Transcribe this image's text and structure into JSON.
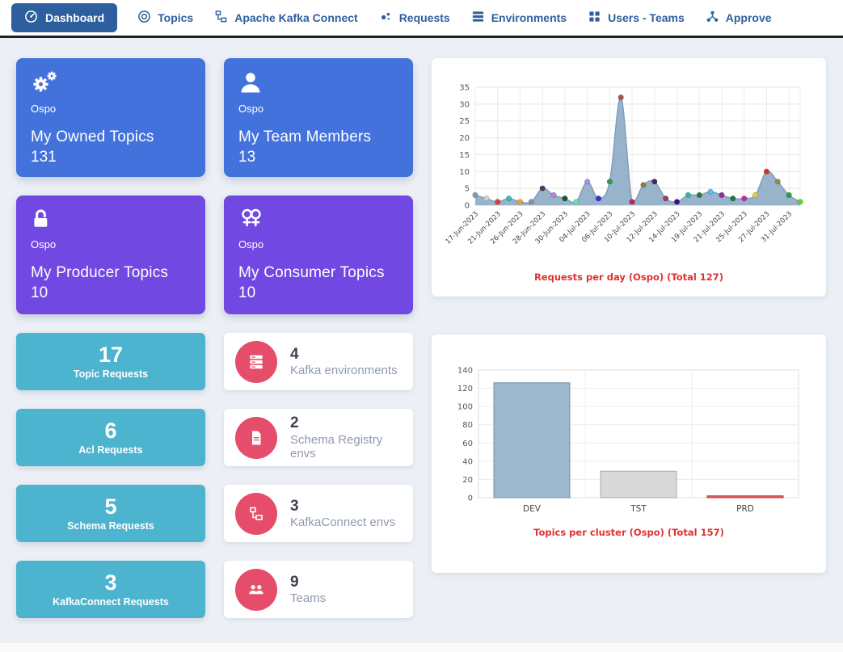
{
  "navbar": {
    "items": [
      {
        "label": "Dashboard",
        "icon": "gauge-icon",
        "active": true
      },
      {
        "label": "Topics",
        "icon": "topics-icon",
        "active": false
      },
      {
        "label": "Apache Kafka Connect",
        "icon": "kafka-connect-icon",
        "active": false
      },
      {
        "label": "Requests",
        "icon": "requests-icon",
        "active": false
      },
      {
        "label": "Environments",
        "icon": "environments-icon",
        "active": false
      },
      {
        "label": "Users - Teams",
        "icon": "users-teams-icon",
        "active": false
      },
      {
        "label": "Approve",
        "icon": "approve-icon",
        "active": false
      }
    ]
  },
  "stat_cards": [
    {
      "team": "Ospo",
      "title": "My Owned Topics",
      "value": "131",
      "color": "#4472dd",
      "icon": "gears-icon"
    },
    {
      "team": "Ospo",
      "title": "My Team Members",
      "value": "13",
      "color": "#4472dd",
      "icon": "person-icon"
    },
    {
      "team": "Ospo",
      "title": "My Producer Topics",
      "value": "10",
      "color": "#7248e3",
      "icon": "unlock-icon"
    },
    {
      "team": "Ospo",
      "title": "My Consumer Topics",
      "value": "10",
      "color": "#7248e3",
      "icon": "consumers-icon"
    }
  ],
  "request_cards": [
    {
      "value": "17",
      "label": "Topic Requests"
    },
    {
      "value": "6",
      "label": "Acl Requests"
    },
    {
      "value": "5",
      "label": "Schema Requests"
    },
    {
      "value": "3",
      "label": "KafkaConnect Requests"
    }
  ],
  "env_cards": [
    {
      "value": "4",
      "label": "Kafka environments",
      "icon": "server-icon"
    },
    {
      "value": "2",
      "label": "Schema Registry envs",
      "icon": "file-icon"
    },
    {
      "value": "3",
      "label": "KafkaConnect envs",
      "icon": "kafka-connect-icon"
    },
    {
      "value": "9",
      "label": "Teams",
      "icon": "people-icon"
    }
  ],
  "colors": {
    "nav_active_bg": "#2d5f9e",
    "nav_link": "#2d5f9e",
    "page_bg": "#ecf0f6",
    "card_blue": "#4472dd",
    "card_purple": "#7248e3",
    "card_teal": "#4cb4ce",
    "env_icon_bg": "#e54d6b",
    "chart_title_red": "#e03131"
  },
  "chart_data": [
    {
      "type": "area",
      "title": "Requests per day (Ospo) (Total 127)",
      "x_labels": [
        "17-Jun-2023",
        "21-Jun-2023",
        "26-Jun-2023",
        "28-Jun-2023",
        "30-Jun-2023",
        "04-Jul-2023",
        "06-Jul-2023",
        "10-Jul-2023",
        "12-Jul-2023",
        "14-Jul-2023",
        "19-Jul-2023",
        "21-Jul-2023",
        "25-Jul-2023",
        "27-Jul-2023",
        "31-Jul-2023"
      ],
      "label_every": 2,
      "values": [
        3,
        2,
        1,
        2,
        1,
        1,
        5,
        3,
        2,
        1,
        7,
        2,
        7,
        32,
        1,
        6,
        7,
        2,
        1,
        3,
        3,
        4,
        3,
        2,
        2,
        3,
        10,
        7,
        3,
        1
      ],
      "point_colors": [
        "#7f9db8",
        "#cfcfcf",
        "#e23c3c",
        "#3fb8b0",
        "#f0a23c",
        "#8d93a8",
        "#3f4454",
        "#c07fd8",
        "#1e5631",
        "#63e6a9",
        "#a98ff0",
        "#3b2fd4",
        "#2f9e44",
        "#a65353",
        "#c2255c",
        "#8f7d3f",
        "#40304f",
        "#a03c50",
        "#3b0f87",
        "#43b0a0",
        "#2e7d32",
        "#54c8e8",
        "#9c2ba0",
        "#1f7a33",
        "#c429a5",
        "#edc53f",
        "#d93025",
        "#9c8a4a",
        "#2f9e44",
        "#5fd038"
      ],
      "ylim": [
        0,
        35
      ],
      "ytick_step": 5,
      "fill": "#92b0c9",
      "line": "#7d9cb8",
      "grid": true,
      "legend": "none"
    },
    {
      "type": "bar",
      "title": "Topics per cluster (Ospo) (Total 157)",
      "categories": [
        "DEV",
        "TST",
        "PRD"
      ],
      "values": [
        126,
        29,
        2
      ],
      "bar_colors": [
        "#9db8cd",
        "#d9d9d9",
        "#e06666"
      ],
      "bar_borders": [
        "#6f8fa8",
        "#a8a8a8",
        "#cc2936"
      ],
      "ylim": [
        0,
        140
      ],
      "ytick_step": 20,
      "grid": true,
      "legend": "none"
    }
  ]
}
